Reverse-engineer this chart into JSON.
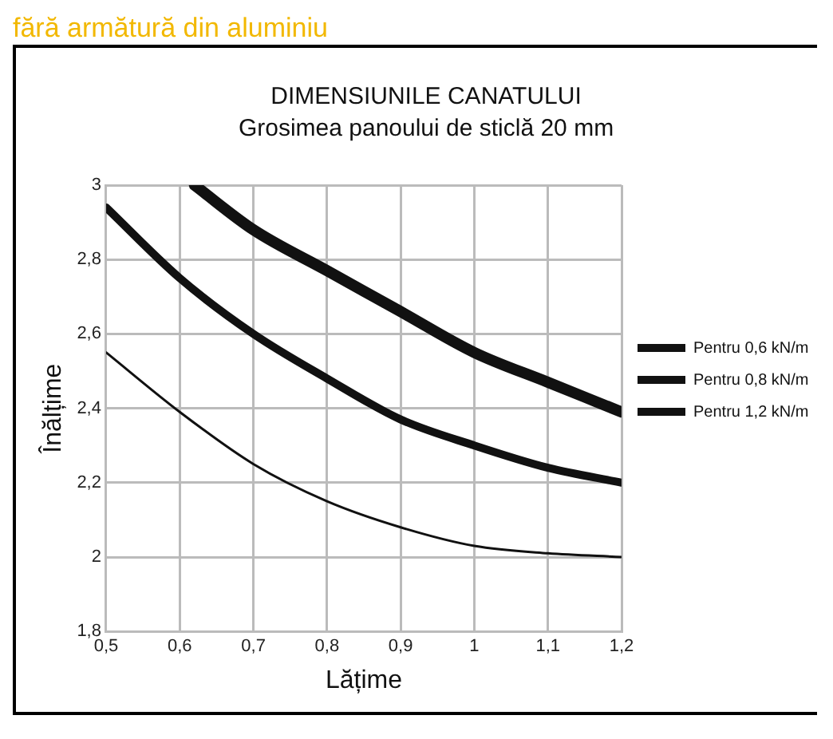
{
  "chart_data": {
    "type": "line",
    "title": "DIMENSIUNILE CANATULUI",
    "subtitle": "Grosimea panoului de sticlă 20 mm",
    "xlabel": "Lățime",
    "ylabel": "Înălțime",
    "annotations": [
      "fără armătură din aluminiu"
    ],
    "series": [
      {
        "name": "Pentru 0,6 kN/m",
        "color": "#111111",
        "x": [
          0.62,
          0.7,
          0.8,
          0.9,
          1.0,
          1.1,
          1.2
        ],
        "values": [
          3.0,
          2.88,
          2.77,
          2.66,
          2.55,
          2.47,
          2.39
        ]
      },
      {
        "name": "Pentru 0,8 kN/m",
        "color": "#111111",
        "x": [
          0.5,
          0.6,
          0.7,
          0.8,
          0.9,
          1.0,
          1.1,
          1.2
        ],
        "values": [
          2.94,
          2.75,
          2.6,
          2.48,
          2.37,
          2.3,
          2.24,
          2.2
        ]
      },
      {
        "name": "Pentru 1,2 kN/m",
        "color": "#111111",
        "x": [
          0.5,
          0.6,
          0.7,
          0.8,
          0.9,
          1.0,
          1.1,
          1.2
        ],
        "values": [
          2.55,
          2.39,
          2.25,
          2.15,
          2.08,
          2.03,
          2.01,
          2.0
        ]
      }
    ],
    "xlim": [
      0.5,
      1.2
    ],
    "xticks": [
      {
        "value": 0.5,
        "label": "0,5"
      },
      {
        "value": 0.6,
        "label": "0,6"
      },
      {
        "value": 0.7,
        "label": "0,7"
      },
      {
        "value": 0.8,
        "label": "0,8"
      },
      {
        "value": 0.9,
        "label": "0,9"
      },
      1,
      {
        "value": 1.1,
        "label": "1,1"
      },
      {
        "value": 1.2,
        "label": "1,2"
      }
    ],
    "ylim": [
      1.8,
      3
    ],
    "yticks": [
      {
        "value": 1.8,
        "label": "1,8"
      },
      2,
      {
        "value": 2.2,
        "label": "2,2"
      },
      {
        "value": 2.4,
        "label": "2,4"
      },
      {
        "value": 2.6,
        "label": "2,6"
      },
      {
        "value": 2.8,
        "label": "2,8"
      },
      3
    ],
    "grid": true,
    "legend": "right",
    "marker": "none",
    "line_style": "solid"
  }
}
